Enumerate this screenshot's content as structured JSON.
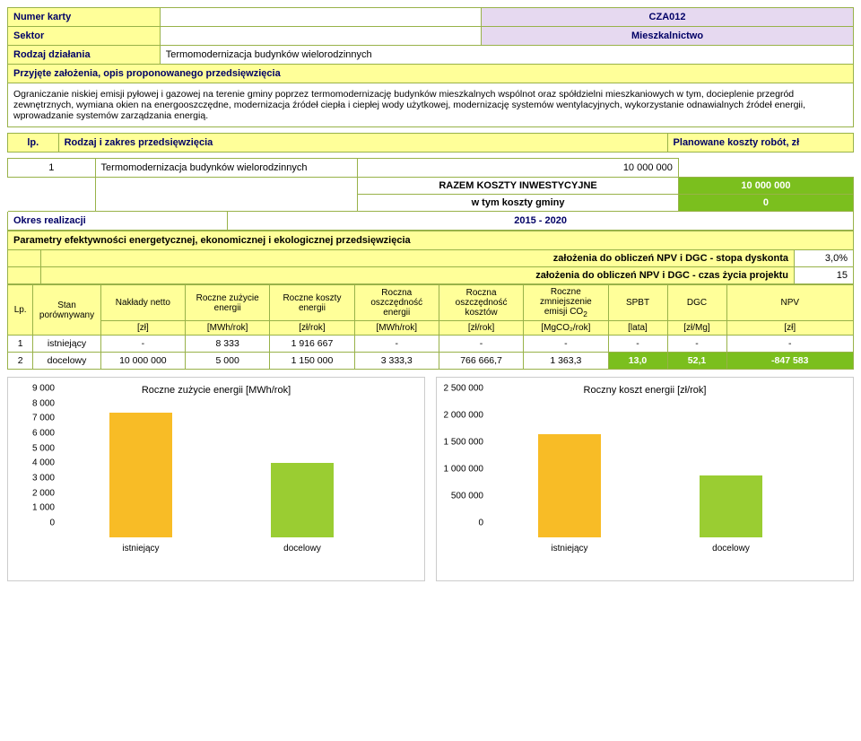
{
  "header": {
    "numer_label": "Numer karty",
    "numer_value": "CZA012",
    "sektor_label": "Sektor",
    "sektor_value": "Mieszkalnictwo",
    "rodzaj_label": "Rodzaj działania",
    "rodzaj_value": "Termomodernizacja budynków wielorodzinnych",
    "zalozenia_label": "Przyjęte założenia, opis proponowanego przedsięwzięcia",
    "description": "Ograniczanie niskiej emisji pyłowej i gazowej na terenie gminy poprzez termomodernizację budynków mieszkalnych wspólnot oraz spółdzielni mieszkaniowych w tym, docieplenie przegród zewnętrznych, wymiana okien na energooszczędne, modernizacja źródeł ciepła i ciepłej wody użytkowej, modernizację systemów wentylacyjnych, wykorzystanie odnawialnych źródeł energii, wprowadzanie systemów zarządzania energią."
  },
  "lp_section": {
    "lp_label": "lp.",
    "zakres_label": "Rodzaj i zakres przedsięwzięcia",
    "koszty_label": "Planowane koszty robót, zł",
    "rows": [
      {
        "lp": "1",
        "name": "Termomodernizacja budynków wielorodzinnych",
        "cost": "10 000 000"
      }
    ],
    "razem_label": "RAZEM KOSZTY INWESTYCYJNE",
    "razem_value": "10 000 000",
    "wtym_label": "w tym koszty gminy",
    "wtym_value": "0",
    "okres_label": "Okres realizacji",
    "okres_value": "2015 - 2020"
  },
  "params": {
    "title": "Parametry efektywności energetycznej, ekonomicznej i ekologicznej przedsięwzięcia",
    "stopa_label": "założenia do obliczeń NPV i DGC - stopa dyskonta",
    "stopa_value": "3,0%",
    "czas_label": "założenia do obliczeń NPV i DGC - czas życia projektu",
    "czas_value": "15",
    "headers": {
      "lp": "Lp.",
      "stan": "Stan porównywany",
      "naklady": "Nakłady netto",
      "zuzycie": "Roczne zużycie energii",
      "koszty": "Roczne koszty energii",
      "osz_en": "Roczna oszczędność energii",
      "osz_k": "Roczna oszczędność kosztów",
      "co2": "Roczne zmniejszenie emisji CO",
      "co2_sub": "2",
      "spbt": "SPBT",
      "dgc": "DGC",
      "npv": "NPV"
    },
    "units": {
      "naklady": "[zł]",
      "zuzycie": "[MWh/rok]",
      "koszty": "[zł/rok]",
      "osz_en": "[MWh/rok]",
      "osz_k": "[zł/rok]",
      "co2": "[MgCO₂/rok]",
      "spbt": "[lata]",
      "dgc": "[zł/Mg]",
      "npv": "[zł]"
    },
    "rows": [
      {
        "lp": "1",
        "stan": "istniejący",
        "naklady": "-",
        "zuzycie": "8 333",
        "koszty": "1 916 667",
        "osz_en": "-",
        "osz_k": "-",
        "co2": "-",
        "spbt": "-",
        "dgc": "-",
        "npv": "-"
      },
      {
        "lp": "2",
        "stan": "docelowy",
        "naklady": "10 000 000",
        "zuzycie": "5 000",
        "koszty": "1 150 000",
        "osz_en": "3 333,3",
        "osz_k": "766 666,7",
        "co2": "1 363,3",
        "spbt": "13,0",
        "dgc": "52,1",
        "npv": "-847 583"
      }
    ]
  },
  "charts": {
    "left": {
      "title": "Roczne zużycie energii [MWh/rok]",
      "y_ticks": [
        "9 000",
        "8 000",
        "7 000",
        "6 000",
        "5 000",
        "4 000",
        "3 000",
        "2 000",
        "1 000",
        "0"
      ],
      "y_max": 9000,
      "bars": [
        {
          "label": "istniejący",
          "value": 8333,
          "color": "#f8bc26"
        },
        {
          "label": "docelowy",
          "value": 5000,
          "color": "#9acd32"
        }
      ]
    },
    "right": {
      "title": "Roczny koszt energii [zł/rok]",
      "y_ticks": [
        "2 500 000",
        "2 000 000",
        "1 500 000",
        "1 000 000",
        "500 000",
        "0"
      ],
      "y_max": 2500000,
      "bars": [
        {
          "label": "istniejący",
          "value": 1916667,
          "color": "#f8bc26"
        },
        {
          "label": "docelowy",
          "value": 1150000,
          "color": "#9acd32"
        }
      ]
    }
  },
  "colors": {
    "border": "#98b249",
    "yellow": "#ffff99",
    "purple": "#e6d9f0",
    "green": "#7bbf1e",
    "navy": "#000066"
  }
}
